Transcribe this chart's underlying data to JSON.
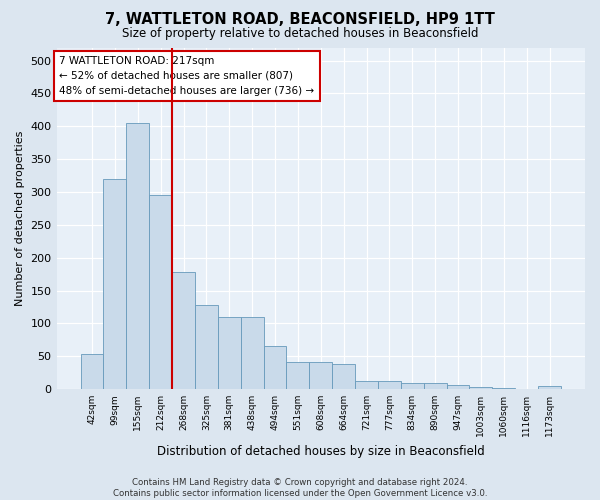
{
  "title": "7, WATTLETON ROAD, BEACONSFIELD, HP9 1TT",
  "subtitle": "Size of property relative to detached houses in Beaconsfield",
  "xlabel": "Distribution of detached houses by size in Beaconsfield",
  "ylabel": "Number of detached properties",
  "footer_line1": "Contains HM Land Registry data © Crown copyright and database right 2024.",
  "footer_line2": "Contains public sector information licensed under the Open Government Licence v3.0.",
  "annotation_title": "7 WATTLETON ROAD: 217sqm",
  "annotation_line2": "← 52% of detached houses are smaller (807)",
  "annotation_line3": "48% of semi-detached houses are larger (736) →",
  "bar_color": "#c9daea",
  "bar_edge_color": "#6699bb",
  "vline_color": "#cc0000",
  "annotation_box_edgecolor": "#cc0000",
  "background_color": "#dce6f0",
  "plot_bg_color": "#e8f0f8",
  "grid_color": "#ffffff",
  "categories": [
    "42sqm",
    "99sqm",
    "155sqm",
    "212sqm",
    "268sqm",
    "325sqm",
    "381sqm",
    "438sqm",
    "494sqm",
    "551sqm",
    "608sqm",
    "664sqm",
    "721sqm",
    "777sqm",
    "834sqm",
    "890sqm",
    "947sqm",
    "1003sqm",
    "1060sqm",
    "1116sqm",
    "1173sqm"
  ],
  "values": [
    53,
    320,
    405,
    295,
    178,
    128,
    110,
    110,
    65,
    42,
    42,
    38,
    12,
    12,
    10,
    10,
    6,
    3,
    2,
    1,
    5
  ],
  "vline_x": 3.5,
  "ylim": [
    0,
    520
  ],
  "yticks": [
    0,
    50,
    100,
    150,
    200,
    250,
    300,
    350,
    400,
    450,
    500
  ],
  "figsize": [
    6.0,
    5.0
  ],
  "dpi": 100
}
